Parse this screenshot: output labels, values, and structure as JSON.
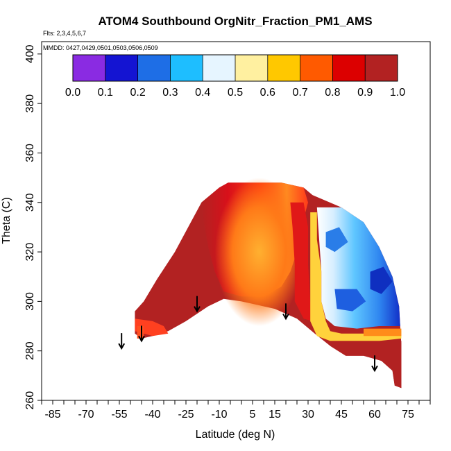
{
  "chart_data": {
    "type": "heatmap",
    "title": "ATOM4 Southbound OrgNitr_Fraction_PM1_AMS",
    "annotations": [
      "Flts: 2,3,4,5,6,7",
      "MMDD: 0427,0429,0501,0503,0506,0509"
    ],
    "xlabel": "Latitude (deg N)",
    "ylabel": "Theta (C)",
    "xlim": [
      -90,
      85
    ],
    "ylim": [
      260,
      405
    ],
    "x_ticks": [
      -85,
      -70,
      -55,
      -40,
      -25,
      -10,
      5,
      15,
      30,
      45,
      60,
      75
    ],
    "y_ticks": [
      260,
      280,
      300,
      320,
      340,
      360,
      380,
      400
    ],
    "colorbar": {
      "range": [
        0,
        1
      ],
      "ticks": [
        "0.0",
        "0.1",
        "0.2",
        "0.3",
        "0.4",
        "0.5",
        "0.6",
        "0.7",
        "0.8",
        "0.9",
        "1.0"
      ],
      "colors": [
        "#8a2be2",
        "#1414d2",
        "#1e6ee6",
        "#1ebeff",
        "#e6f5ff",
        "#fff0a0",
        "#ffc800",
        "#ff5a00",
        "#dc0000",
        "#b22222"
      ]
    },
    "tropopause_arrows": [
      {
        "lat": -54,
        "theta": 281
      },
      {
        "lat": -45,
        "theta": 284
      },
      {
        "lat": -20,
        "theta": 296
      },
      {
        "lat": 20,
        "theta": 293
      },
      {
        "lat": 60,
        "theta": 272
      }
    ],
    "field_summary": [
      {
        "region": "Southern hemisphere lower troposphere (lat -48 to -10, theta 280-340)",
        "value": 0.95
      },
      {
        "region": "Tropical mid troposphere core (lat 0 to 20, theta 300-340)",
        "value": 0.8
      },
      {
        "region": "Northern high latitude upper troposphere (lat 35 to 70, theta 295-335)",
        "value": 0.3
      },
      {
        "region": "Northern high latitude surface layer (lat 30 to 72, theta 270-290)",
        "value": 0.95
      }
    ]
  }
}
